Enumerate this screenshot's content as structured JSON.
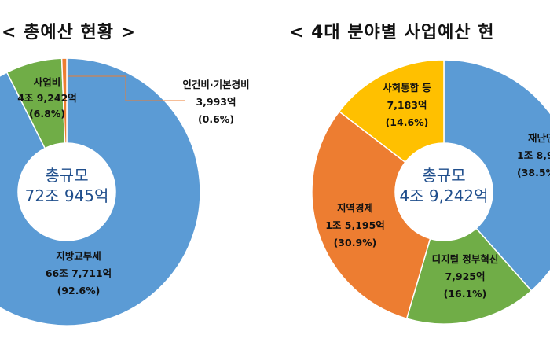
{
  "chart_data": [
    {
      "type": "pie",
      "title": "< 총예산 현황 >",
      "center_label": [
        "총규모",
        "72조 945억"
      ],
      "slices": [
        {
          "name": "지방교부세",
          "amount": "66조 7,711억",
          "percent": 92.6,
          "percent_label": "(92.6%)",
          "color": "#5b9bd5"
        },
        {
          "name": "사업비",
          "amount": "4조 9,242억",
          "percent": 6.8,
          "percent_label": "(6.8%)",
          "color": "#70ad47"
        },
        {
          "name": "인건비·기본경비",
          "amount": "3,993억",
          "percent": 0.6,
          "percent_label": "(0.6%)",
          "color": "#ed7d31"
        }
      ]
    },
    {
      "type": "pie",
      "title": "< 4대 분야별 사업예산 현",
      "center_label": [
        "총규모",
        "4조 9,242억"
      ],
      "slices": [
        {
          "name": "재난안",
          "amount": "1조 8,93",
          "percent": 38.5,
          "percent_label": "(38.5%",
          "color": "#5b9bd5"
        },
        {
          "name": "디지털 정부혁신",
          "amount": "7,925억",
          "percent": 16.1,
          "percent_label": "(16.1%)",
          "color": "#70ad47"
        },
        {
          "name": "지역경제",
          "amount": "1조 5,195억",
          "percent": 30.9,
          "percent_label": "(30.9%)",
          "color": "#ed7d31"
        },
        {
          "name": "사회통합 등",
          "amount": "7,183억",
          "percent": 14.6,
          "percent_label": "(14.6%)",
          "color": "#ffc000"
        }
      ]
    }
  ]
}
